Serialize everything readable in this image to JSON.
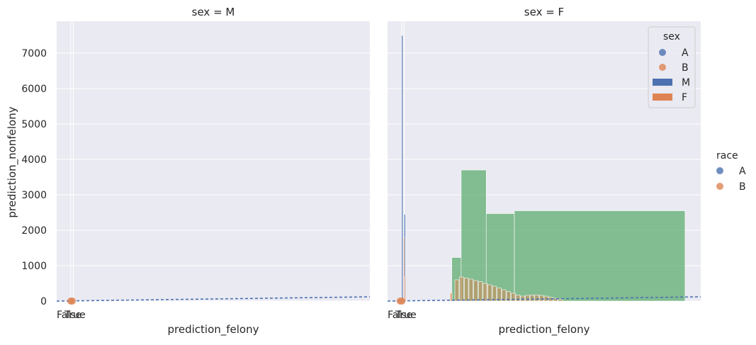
{
  "chart_data": {
    "type": "histogram-facet",
    "legend_hue": {
      "title": "race",
      "entries": [
        {
          "label": "A",
          "color": "#4c72b0"
        },
        {
          "label": "B",
          "color": "#dd8452"
        }
      ],
      "placement": "right-outside"
    },
    "legend_inner": {
      "title": "sex",
      "placement": "top-right",
      "entries": [
        {
          "label": "A",
          "kind": "point",
          "color": "#4c72b0"
        },
        {
          "label": "B",
          "kind": "point",
          "color": "#dd8452"
        },
        {
          "label": "M",
          "kind": "bar",
          "color": "#4c72b0"
        },
        {
          "label": "F",
          "kind": "bar",
          "color": "#dd8452"
        }
      ]
    },
    "colors": {
      "blue": "#4c72b0",
      "orange": "#dd8452",
      "green": "#55a868",
      "background": "#eaeaf2",
      "grid": "#ffffff"
    },
    "ylim": [
      0,
      7900
    ],
    "yticks": [
      0,
      1000,
      2000,
      3000,
      4000,
      5000,
      6000,
      7000
    ],
    "xlabel": "prediction_felony",
    "ylabel": "prediction_nonfelony",
    "panels": [
      {
        "title": "sex = M",
        "xlim": [
          0,
          100
        ],
        "xticklabels": [
          "False",
          "True"
        ],
        "bars": [],
        "points": [
          {
            "x": 4.5,
            "y": 0,
            "color": "orange"
          },
          {
            "x": 5.0,
            "y": 0,
            "color": "orange"
          }
        ],
        "trend_line": {
          "x": [
            0,
            100
          ],
          "y": [
            0,
            120
          ],
          "color": "blue"
        }
      },
      {
        "title": "sex = F",
        "xlim": [
          0,
          100
        ],
        "xticklabels": [
          "False",
          "True"
        ],
        "bars": [
          {
            "x0": 4.5,
            "x1": 4.9,
            "y": 7500,
            "color": "blue",
            "alpha": 1
          },
          {
            "x0": 5.3,
            "x1": 5.7,
            "y": 2450,
            "color": "blue",
            "alpha": 1
          },
          {
            "x0": 5.1,
            "x1": 5.4,
            "y": 1800,
            "color": "orange",
            "alpha": 1
          },
          {
            "x0": 5.6,
            "x1": 5.8,
            "y": 700,
            "color": "orange",
            "alpha": 1
          },
          {
            "x0": 20.5,
            "x1": 23.5,
            "y": 1230,
            "color": "green",
            "alpha": 0.7
          },
          {
            "x0": 23.5,
            "x1": 31.5,
            "y": 3700,
            "color": "green",
            "alpha": 0.7
          },
          {
            "x0": 31.5,
            "x1": 40.5,
            "y": 2470,
            "color": "green",
            "alpha": 0.7
          },
          {
            "x0": 40.5,
            "x1": 95.0,
            "y": 2550,
            "color": "green",
            "alpha": 0.7
          },
          {
            "x0": 20.0,
            "x1": 20.6,
            "y": 230,
            "color": "orange",
            "alpha": 0.8
          },
          {
            "x0": 21.5,
            "x1": 22.8,
            "y": 600,
            "color": "orange",
            "alpha": 0.5
          },
          {
            "x0": 23.0,
            "x1": 24.3,
            "y": 680,
            "color": "orange",
            "alpha": 0.5
          },
          {
            "x0": 24.5,
            "x1": 25.8,
            "y": 650,
            "color": "orange",
            "alpha": 0.5
          },
          {
            "x0": 26.0,
            "x1": 27.3,
            "y": 620,
            "color": "orange",
            "alpha": 0.5
          },
          {
            "x0": 27.5,
            "x1": 28.8,
            "y": 580,
            "color": "orange",
            "alpha": 0.5
          },
          {
            "x0": 29.0,
            "x1": 30.3,
            "y": 550,
            "color": "orange",
            "alpha": 0.5
          },
          {
            "x0": 30.5,
            "x1": 31.8,
            "y": 500,
            "color": "orange",
            "alpha": 0.5
          },
          {
            "x0": 32.0,
            "x1": 33.3,
            "y": 460,
            "color": "orange",
            "alpha": 0.5
          },
          {
            "x0": 33.5,
            "x1": 34.8,
            "y": 420,
            "color": "orange",
            "alpha": 0.5
          },
          {
            "x0": 35.0,
            "x1": 36.3,
            "y": 370,
            "color": "orange",
            "alpha": 0.5
          },
          {
            "x0": 36.5,
            "x1": 37.8,
            "y": 320,
            "color": "orange",
            "alpha": 0.5
          },
          {
            "x0": 38.0,
            "x1": 39.3,
            "y": 270,
            "color": "orange",
            "alpha": 0.5
          },
          {
            "x0": 39.5,
            "x1": 40.8,
            "y": 220,
            "color": "orange",
            "alpha": 0.5
          },
          {
            "x0": 41.0,
            "x1": 42.3,
            "y": 170,
            "color": "orange",
            "alpha": 0.5
          },
          {
            "x0": 42.5,
            "x1": 43.8,
            "y": 140,
            "color": "orange",
            "alpha": 0.5
          },
          {
            "x0": 44.0,
            "x1": 45.3,
            "y": 160,
            "color": "orange",
            "alpha": 0.5
          },
          {
            "x0": 45.5,
            "x1": 46.8,
            "y": 170,
            "color": "orange",
            "alpha": 0.5
          },
          {
            "x0": 47.0,
            "x1": 48.3,
            "y": 170,
            "color": "orange",
            "alpha": 0.5
          },
          {
            "x0": 48.5,
            "x1": 49.8,
            "y": 160,
            "color": "orange",
            "alpha": 0.5
          },
          {
            "x0": 50.0,
            "x1": 51.3,
            "y": 140,
            "color": "orange",
            "alpha": 0.5
          },
          {
            "x0": 51.5,
            "x1": 52.8,
            "y": 110,
            "color": "orange",
            "alpha": 0.5
          },
          {
            "x0": 53.0,
            "x1": 54.3,
            "y": 80,
            "color": "orange",
            "alpha": 0.5
          },
          {
            "x0": 54.5,
            "x1": 55.8,
            "y": 50,
            "color": "orange",
            "alpha": 0.5
          }
        ],
        "points": [
          {
            "x": 4.0,
            "y": 0,
            "color": "orange"
          },
          {
            "x": 4.6,
            "y": 0,
            "color": "orange"
          }
        ],
        "trend_line": {
          "x": [
            0,
            100
          ],
          "y": [
            0,
            120
          ],
          "color": "blue"
        }
      }
    ]
  }
}
